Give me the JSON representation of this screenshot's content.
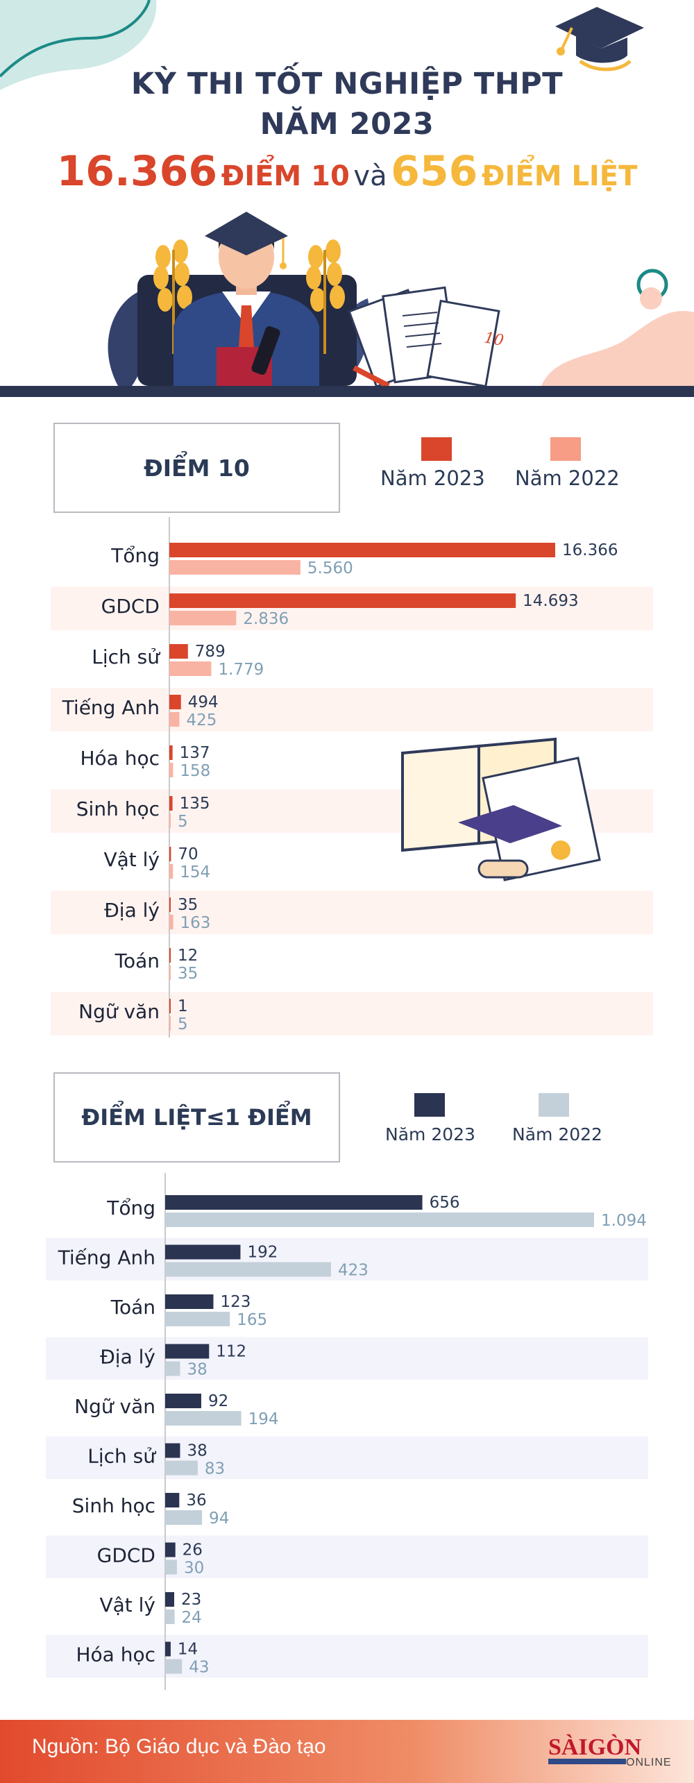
{
  "header": {
    "title_line1": "KỲ THI TỐT NGHIỆP THPT",
    "title_line2": "NĂM 2023",
    "headline_num1": "16.366",
    "headline_label1": "ĐIỂM 10",
    "headline_connector": "và",
    "headline_num2": "656",
    "headline_label2": "ĐIỂM LIỆT"
  },
  "section1": {
    "box_title": "ĐIỂM 10",
    "legend_2023": "Năm 2023",
    "legend_2022": "Năm 2022"
  },
  "section2": {
    "box_title": "ĐIỂM LIỆT≤1 ĐIỂM",
    "legend_2023": "Năm 2023",
    "legend_2022": "Năm 2022"
  },
  "footer": {
    "source": "Nguồn: Bộ Giáo dục và Đào tạo",
    "logo_text": "SÀIGÒN",
    "logo_sub": "ONLINE"
  },
  "colors": {
    "s1_2023": "#d9462b",
    "s1_2022": "#f9b3a3",
    "s2_2023": "#2b3450",
    "s2_2022": "#c3d0d9",
    "label_2023": "#2b3a55",
    "label_2022": "#7f9fb4",
    "band1": "#fff3f0",
    "band2": "#f3f3fb"
  },
  "chart_data": [
    {
      "type": "bar",
      "orientation": "horizontal",
      "title": "ĐIỂM 10",
      "categories": [
        "Tổng",
        "GDCD",
        "Lịch sử",
        "Tiếng Anh",
        "Hóa học",
        "Sinh học",
        "Vật lý",
        "Địa lý",
        "Toán",
        "Ngữ văn"
      ],
      "value_labels_2023": [
        "16.366",
        "14.693",
        "789",
        "494",
        "137",
        "135",
        "70",
        "35",
        "12",
        "1"
      ],
      "value_labels_2022": [
        "5.560",
        "2.836",
        "1.779",
        "425",
        "158",
        "5",
        "154",
        "163",
        "35",
        "5"
      ],
      "series": [
        {
          "name": "Năm 2023",
          "values": [
            16366,
            14693,
            789,
            494,
            137,
            135,
            70,
            35,
            12,
            1
          ]
        },
        {
          "name": "Năm 2022",
          "values": [
            5560,
            2836,
            1779,
            425,
            158,
            5,
            154,
            163,
            35,
            5
          ]
        }
      ],
      "legend": "top-right",
      "grid": false
    },
    {
      "type": "bar",
      "orientation": "horizontal",
      "title": "ĐIỂM LIỆT≤1 ĐIỂM",
      "categories": [
        "Tổng",
        "Tiếng Anh",
        "Toán",
        "Địa lý",
        "Ngữ văn",
        "Lịch sử",
        "Sinh học",
        "GDCD",
        "Vật lý",
        "Hóa học"
      ],
      "value_labels_2023": [
        "656",
        "192",
        "123",
        "112",
        "92",
        "38",
        "36",
        "26",
        "23",
        "14"
      ],
      "value_labels_2022": [
        "1.094",
        "423",
        "165",
        "38",
        "194",
        "83",
        "94",
        "30",
        "24",
        "43"
      ],
      "series": [
        {
          "name": "Năm 2023",
          "values": [
            656,
            192,
            123,
            112,
            92,
            38,
            36,
            26,
            23,
            14
          ]
        },
        {
          "name": "Năm 2022",
          "values": [
            1094,
            423,
            165,
            38,
            194,
            83,
            94,
            30,
            24,
            43
          ]
        }
      ],
      "legend": "top-right",
      "grid": false
    }
  ]
}
